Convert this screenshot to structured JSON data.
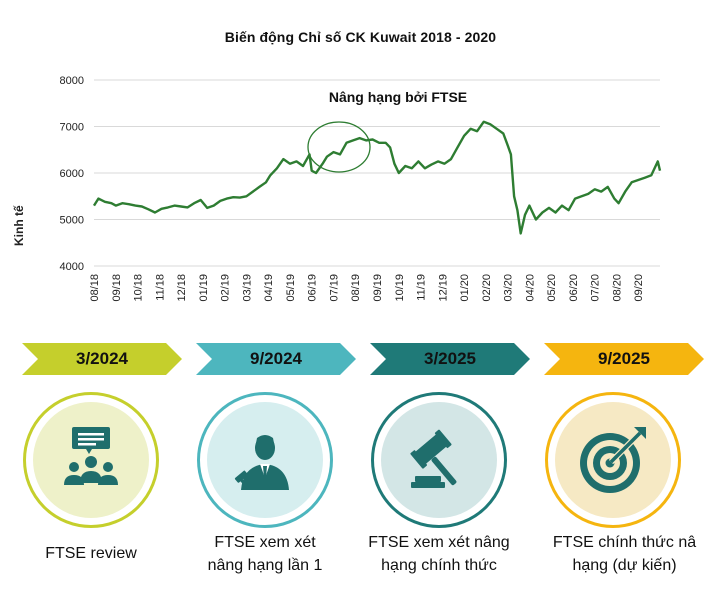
{
  "chart_data": {
    "type": "line",
    "title": "Biến động Chỉ số CK Kuwait 2018 - 2020",
    "ylabel": "Kinh tế",
    "ylim": [
      4000,
      8000
    ],
    "yticks": [
      4000,
      5000,
      6000,
      7000,
      8000
    ],
    "grid": true,
    "x_tick_labels": [
      "08/18",
      "09/18",
      "10/18",
      "11/18",
      "12/18",
      "01/19",
      "02/19",
      "03/19",
      "04/19",
      "05/19",
      "06/19",
      "07/19",
      "08/19",
      "09/19",
      "10/19",
      "11/19",
      "12/19",
      "01/20",
      "02/20",
      "03/20",
      "04/20",
      "05/20",
      "06/20",
      "07/20",
      "08/20",
      "09/20"
    ],
    "annotation": "Nâng hạng bởi FTSE",
    "line_color": "#2e7d32",
    "series": [
      {
        "values": [
          [
            0.0,
            5300
          ],
          [
            0.2,
            5450
          ],
          [
            0.5,
            5380
          ],
          [
            0.8,
            5350
          ],
          [
            1.0,
            5300
          ],
          [
            1.3,
            5350
          ],
          [
            1.6,
            5330
          ],
          [
            1.9,
            5300
          ],
          [
            2.2,
            5280
          ],
          [
            2.5,
            5220
          ],
          [
            2.8,
            5150
          ],
          [
            3.1,
            5230
          ],
          [
            3.4,
            5260
          ],
          [
            3.7,
            5300
          ],
          [
            4.0,
            5280
          ],
          [
            4.3,
            5260
          ],
          [
            4.6,
            5350
          ],
          [
            4.9,
            5420
          ],
          [
            5.2,
            5250
          ],
          [
            5.5,
            5300
          ],
          [
            5.8,
            5400
          ],
          [
            6.1,
            5450
          ],
          [
            6.4,
            5480
          ],
          [
            6.7,
            5470
          ],
          [
            7.0,
            5500
          ],
          [
            7.3,
            5600
          ],
          [
            7.6,
            5700
          ],
          [
            7.9,
            5800
          ],
          [
            8.1,
            5950
          ],
          [
            8.4,
            6100
          ],
          [
            8.7,
            6300
          ],
          [
            9.0,
            6200
          ],
          [
            9.3,
            6250
          ],
          [
            9.6,
            6150
          ],
          [
            9.9,
            6400
          ],
          [
            10.0,
            6050
          ],
          [
            10.2,
            6000
          ],
          [
            10.5,
            6200
          ],
          [
            10.7,
            6350
          ],
          [
            11.0,
            6450
          ],
          [
            11.3,
            6400
          ],
          [
            11.6,
            6650
          ],
          [
            11.9,
            6700
          ],
          [
            12.2,
            6750
          ],
          [
            12.5,
            6700
          ],
          [
            12.8,
            6720
          ],
          [
            13.1,
            6650
          ],
          [
            13.4,
            6650
          ],
          [
            13.6,
            6550
          ],
          [
            13.8,
            6200
          ],
          [
            14.0,
            6000
          ],
          [
            14.3,
            6150
          ],
          [
            14.6,
            6100
          ],
          [
            14.9,
            6250
          ],
          [
            15.2,
            6100
          ],
          [
            15.5,
            6180
          ],
          [
            15.8,
            6250
          ],
          [
            16.1,
            6200
          ],
          [
            16.4,
            6300
          ],
          [
            16.7,
            6550
          ],
          [
            17.0,
            6800
          ],
          [
            17.3,
            6950
          ],
          [
            17.6,
            6900
          ],
          [
            17.9,
            7100
          ],
          [
            18.2,
            7050
          ],
          [
            18.5,
            6950
          ],
          [
            18.8,
            6850
          ],
          [
            19.0,
            6600
          ],
          [
            19.15,
            6400
          ],
          [
            19.3,
            5500
          ],
          [
            19.45,
            5200
          ],
          [
            19.6,
            4700
          ],
          [
            19.8,
            5100
          ],
          [
            20.0,
            5300
          ],
          [
            20.3,
            5000
          ],
          [
            20.6,
            5150
          ],
          [
            20.9,
            5250
          ],
          [
            21.2,
            5150
          ],
          [
            21.5,
            5300
          ],
          [
            21.8,
            5200
          ],
          [
            22.1,
            5450
          ],
          [
            22.4,
            5500
          ],
          [
            22.7,
            5550
          ],
          [
            23.0,
            5650
          ],
          [
            23.3,
            5600
          ],
          [
            23.6,
            5700
          ],
          [
            23.9,
            5450
          ],
          [
            24.1,
            5350
          ],
          [
            24.4,
            5600
          ],
          [
            24.7,
            5800
          ],
          [
            25.0,
            5850
          ],
          [
            25.3,
            5900
          ],
          [
            25.6,
            5950
          ],
          [
            25.9,
            6250
          ],
          [
            26.0,
            6050
          ]
        ]
      }
    ]
  },
  "timeline": [
    {
      "date": "3/2024",
      "caption_lines": [
        "FTSE review",
        ""
      ],
      "icon": "presentation-audience-icon",
      "color": "#c5cf2c",
      "inner": "#eef1c9"
    },
    {
      "date": "9/2024",
      "caption_lines": [
        "FTSE xem xét",
        "nâng hạng lần 1"
      ],
      "icon": "businessman-gavel-icon",
      "color": "#4db6be",
      "inner": "#d6eeef"
    },
    {
      "date": "3/2025",
      "caption_lines": [
        "FTSE xem xét nâng",
        "hạng chính thức"
      ],
      "icon": "gavel-icon",
      "color": "#1f7a78",
      "inner": "#d3e6e6"
    },
    {
      "date": "9/2025",
      "caption_lines": [
        "FTSE chính thức nâ",
        "hạng (dự kiến)"
      ],
      "icon": "target-arrow-icon",
      "color": "#f5b50f",
      "inner": "#f6e9c4"
    }
  ]
}
